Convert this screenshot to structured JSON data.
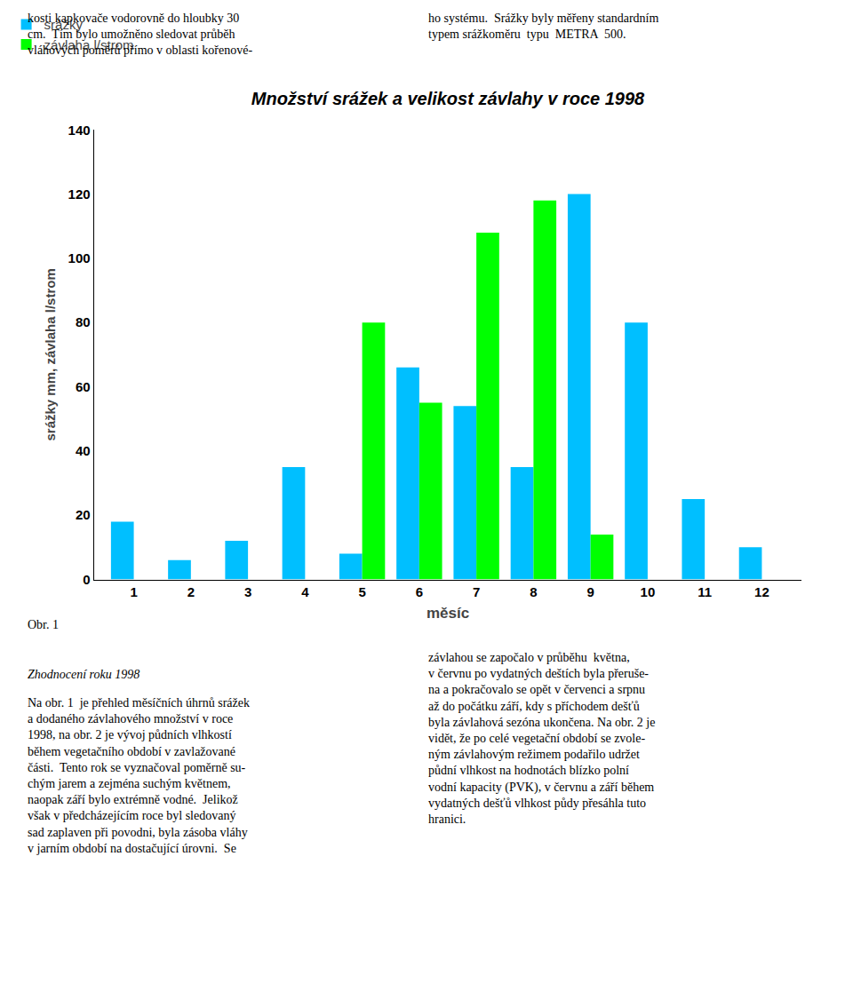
{
  "chart_data": {
    "type": "bar",
    "title": "Množství srážek a velikost závlahy v roce 1998",
    "xlabel": "měsíc",
    "ylabel": "srážky mm, závlaha l/strom",
    "x": [
      1,
      2,
      3,
      4,
      5,
      6,
      7,
      8,
      9,
      10,
      11,
      12
    ],
    "xlim": [
      0.3,
      12.7
    ],
    "xticks": [
      1,
      2,
      3,
      4,
      5,
      6,
      7,
      8,
      9,
      10,
      11,
      12
    ],
    "ylim": [
      0,
      140
    ],
    "yticks": [
      0,
      20,
      40,
      60,
      80,
      100,
      120,
      140
    ],
    "series": [
      {
        "name": "srážky",
        "color": "#00BFFF",
        "values": [
          18,
          6,
          12,
          35,
          8,
          66,
          54,
          35,
          120,
          80,
          25,
          10
        ]
      },
      {
        "name": "závlaha l/strom",
        "color": "#00FF00",
        "values": [
          0,
          0,
          0,
          0,
          80,
          55,
          108,
          118,
          14,
          0,
          0,
          0
        ]
      }
    ],
    "legend": "upper left",
    "grid": false,
    "annotations": [
      "kosti kapkovače vodorovně do hloubky 30\ncm.  Tím bylo umožněno sledovat průběh\nvláhových poměrů přímo v oblasti kořenové-",
      "ho systému.  Srážky byly měřeny standardním\ntypem srážkoměru  typu  METRA  500.",
      "Obr. 1",
      "Zhodnocení roku 1998",
      "Na obr. 1  je přehled měsíčních úhrnů srážek\na dodaného závlahového množství v roce\n1998, na obr. 2 je vývoj půdních vlhkostí\nběhem vegetačního období v zavlažované\nčásti.  Tento rok se vyznačoval poměrně su-\nchým jarem a zejména suchým květnem,\nnaopak září bylo extrémně vodné.  Jelikož\nvšak v předcházejícím roce byl sledovaný\nsad zaplaven při povodni, byla zásoba vláhy\nv jarním období na dostačující úrovni.  Se",
      "závlahou se započalo v průběhu  května,\nv červnu po vydatných deštích byla přeruše-\nna a pokračovalo se opět v červenci a srpnu\naž do počátku září, kdy s příchodem dešťů\nbyla závlahová sezóna ukončena. Na obr. 2 je\nvidět, že po celé vegetační období se zvole-\nným závlahovým režimem podařilo udržet\npůdní vlhkost na hodnotách blízko polní\nvodní kapacity (PVK), v červnu a září během\nvydatných dešťů vlhkost půdy přesáhla tuto\nhranici."
    ]
  }
}
